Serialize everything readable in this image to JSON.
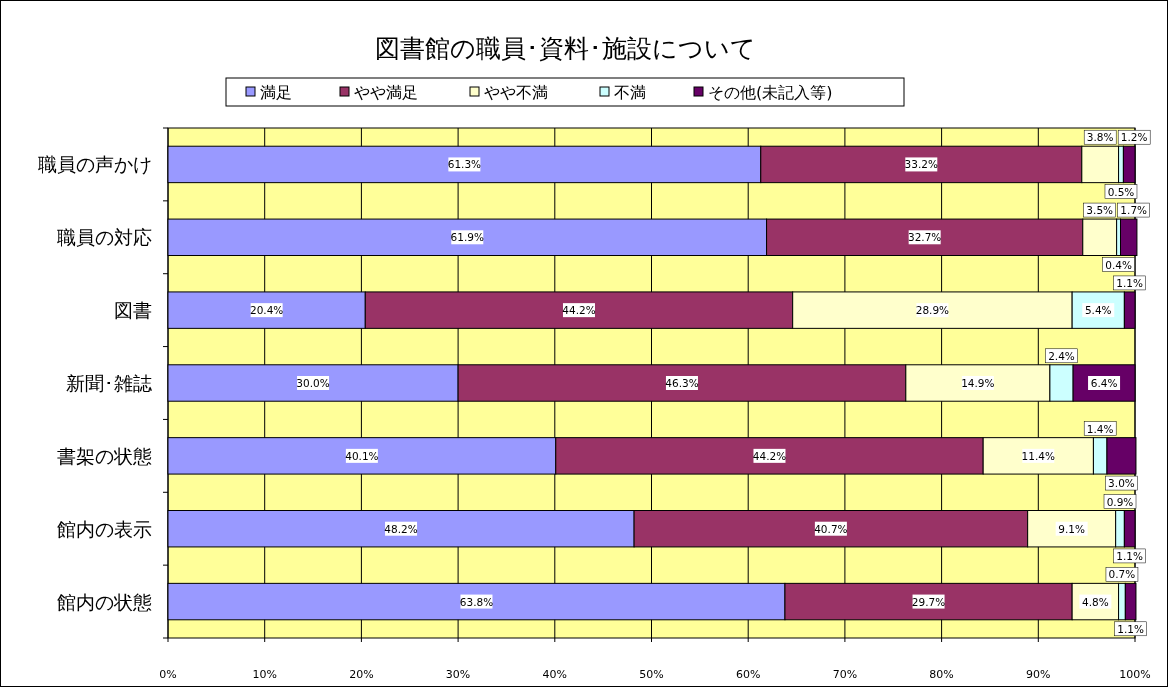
{
  "chart_data": {
    "type": "bar",
    "orientation": "horizontal",
    "stacked": true,
    "title": "図書館の職員･資料･施設について",
    "legend": "top",
    "grid": "x",
    "categories": [
      "職員の声かけ",
      "職員の対応",
      "図書",
      "新聞･雑誌",
      "書架の状態",
      "館内の表示",
      "館内の状態"
    ],
    "xlim": [
      0,
      100
    ],
    "xticks": [
      {
        "value": 0,
        "label": "0%"
      },
      {
        "value": 10,
        "label": "10%"
      },
      {
        "value": 20,
        "label": "20%"
      },
      {
        "value": 30,
        "label": "30%"
      },
      {
        "value": 40,
        "label": "40%"
      },
      {
        "value": 50,
        "label": "50%"
      },
      {
        "value": 60,
        "label": "60%"
      },
      {
        "value": 70,
        "label": "70%"
      },
      {
        "value": 80,
        "label": "80%"
      },
      {
        "value": 90,
        "label": "90%"
      },
      {
        "value": 100,
        "label": "100%"
      }
    ],
    "series": [
      {
        "name": "満足",
        "color": "#9999ff",
        "values": [
          61.3,
          61.9,
          20.4,
          30.0,
          40.1,
          48.2,
          63.8
        ],
        "value_labels": [
          "61.3%",
          "61.9%",
          "20.4%",
          "30.0%",
          "40.1%",
          "48.2%",
          "63.8%"
        ]
      },
      {
        "name": "やや満足",
        "color": "#993366",
        "values": [
          33.2,
          32.7,
          44.2,
          46.3,
          44.2,
          40.7,
          29.7
        ],
        "value_labels": [
          "33.2%",
          "32.7%",
          "44.2%",
          "46.3%",
          "44.2%",
          "40.7%",
          "29.7%"
        ]
      },
      {
        "name": "やや不満",
        "color": "#ffffcc",
        "values": [
          3.8,
          3.5,
          28.9,
          14.9,
          11.4,
          9.1,
          4.8
        ],
        "value_labels": [
          "3.8%",
          "3.5%",
          "28.9%",
          "14.9%",
          "11.4%",
          "9.1%",
          "4.8%"
        ]
      },
      {
        "name": "不満",
        "color": "#ccffff",
        "values": [
          0.5,
          0.4,
          5.4,
          2.4,
          1.4,
          0.9,
          0.7
        ],
        "value_labels": [
          "0.5%",
          "0.4%",
          "5.4%",
          "2.4%",
          "1.4%",
          "0.9%",
          "0.7%"
        ]
      },
      {
        "name": "その他(未記入等)",
        "color": "#660066",
        "values": [
          1.2,
          1.7,
          1.1,
          6.4,
          3.0,
          1.1,
          1.1
        ],
        "value_labels": [
          "1.2%",
          "1.7%",
          "1.1%",
          "6.4%",
          "3.0%",
          "1.1%",
          "1.1%"
        ]
      }
    ]
  }
}
